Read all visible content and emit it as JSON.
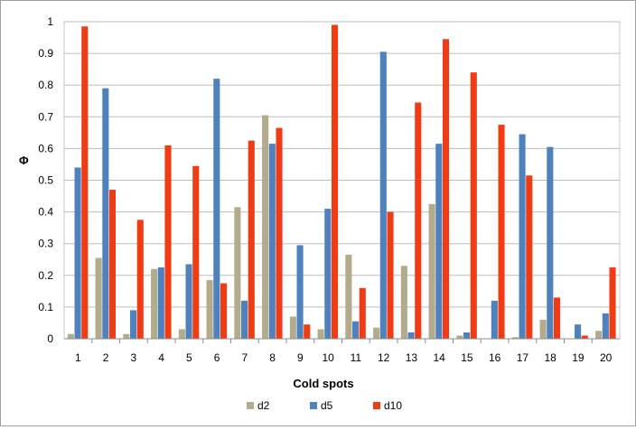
{
  "chart_data": {
    "type": "bar",
    "title": "",
    "xlabel": "Cold spots",
    "ylabel": "Φ",
    "ylim": [
      0,
      1
    ],
    "yticks": [
      "0",
      "0.1",
      "0.2",
      "0.3",
      "0.4",
      "0.5",
      "0.6",
      "0.7",
      "0.8",
      "0.9",
      "1"
    ],
    "categories": [
      "1",
      "2",
      "3",
      "4",
      "5",
      "6",
      "7",
      "8",
      "9",
      "10",
      "11",
      "12",
      "13",
      "14",
      "15",
      "16",
      "17",
      "18",
      "19",
      "20"
    ],
    "grid": true,
    "legend_position": "bottom",
    "series": [
      {
        "name": "d2",
        "color": "#b3ac8c",
        "values": [
          0.015,
          0.255,
          0.015,
          0.22,
          0.03,
          0.185,
          0.415,
          0.705,
          0.07,
          0.03,
          0.265,
          0.035,
          0.23,
          0.425,
          0.01,
          0.0,
          0.005,
          0.06,
          0.0,
          0.025
        ]
      },
      {
        "name": "d5",
        "color": "#4f81bd",
        "values": [
          0.54,
          0.79,
          0.09,
          0.225,
          0.235,
          0.82,
          0.12,
          0.615,
          0.295,
          0.41,
          0.055,
          0.905,
          0.02,
          0.615,
          0.02,
          0.12,
          0.645,
          0.605,
          0.045,
          0.08
        ]
      },
      {
        "name": "d10",
        "color": "#f03c14",
        "values": [
          0.985,
          0.47,
          0.375,
          0.61,
          0.545,
          0.175,
          0.625,
          0.665,
          0.045,
          0.99,
          0.16,
          0.4,
          0.745,
          0.945,
          0.84,
          0.675,
          0.515,
          0.13,
          0.01,
          0.225
        ]
      }
    ]
  }
}
